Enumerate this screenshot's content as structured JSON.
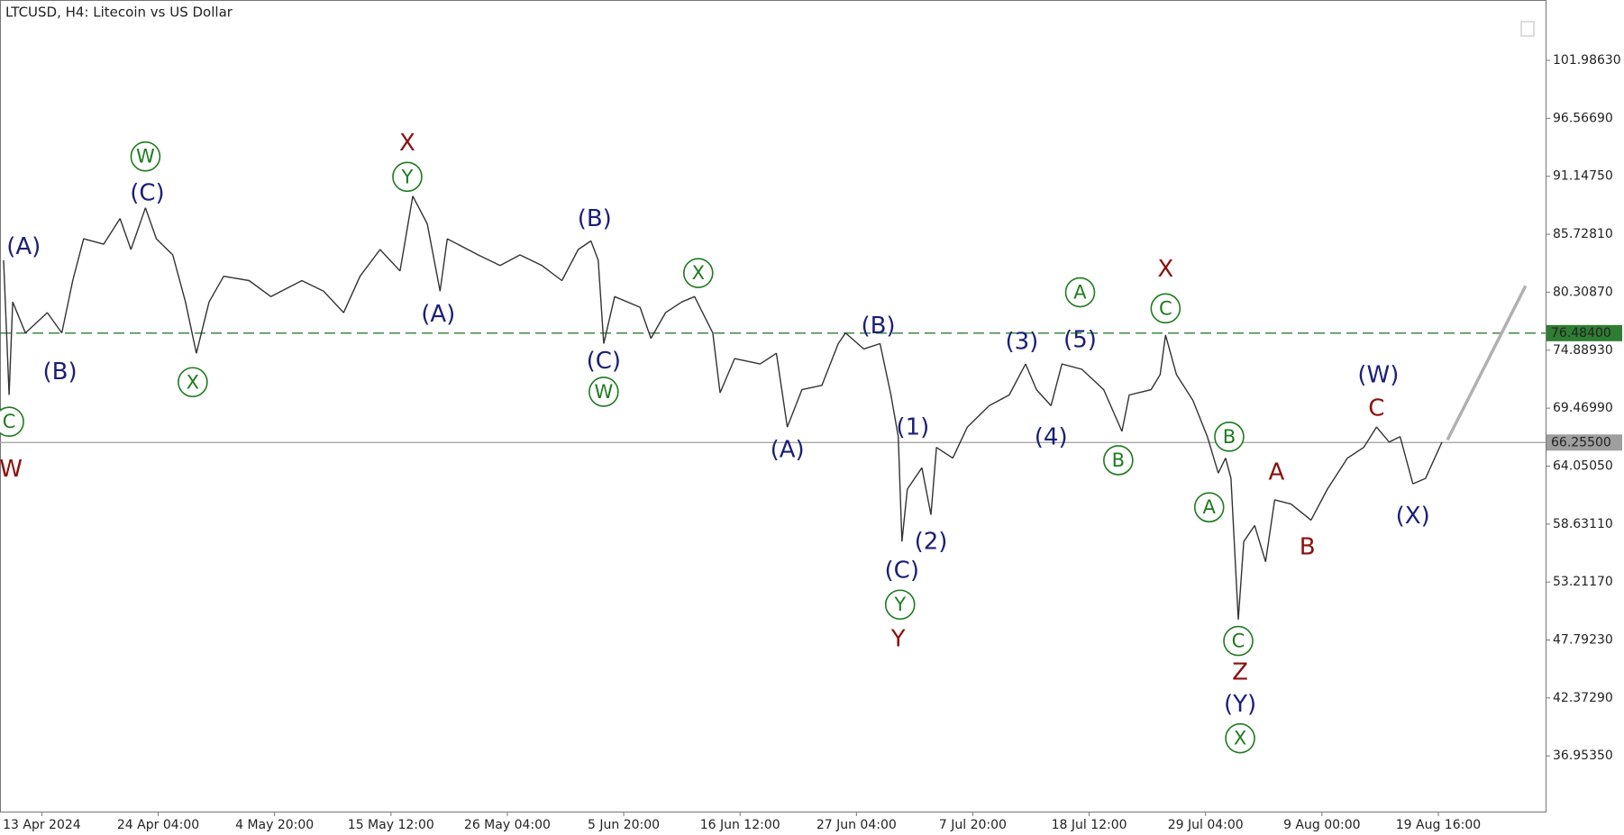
{
  "chart_data": {
    "type": "line",
    "title": "LTCUSD, H4:  Litecoin vs US Dollar",
    "color": "#333333",
    "x": [
      -21,
      -18,
      -16,
      -9,
      3,
      11,
      17,
      23,
      34,
      43,
      49,
      57,
      63,
      72,
      79,
      85,
      92,
      100,
      114,
      126,
      143,
      155,
      166,
      175,
      186,
      197,
      204,
      212,
      219,
      223,
      240,
      252,
      263,
      275,
      286,
      295,
      302,
      306,
      309,
      315,
      329,
      335,
      343,
      352,
      359,
      369,
      373,
      381,
      395,
      404,
      410,
      418,
      429,
      438,
      442,
      452,
      461,
      467,
      471,
      473,
      476,
      484,
      489,
      492,
      501,
      509,
      521,
      532,
      541,
      547,
      555,
      561,
      572,
      584,
      594,
      598,
      610,
      615,
      618,
      624,
      633,
      641,
      647,
      651,
      654,
      658,
      661,
      667,
      673,
      678,
      687,
      698,
      707,
      718,
      727,
      734,
      741,
      747,
      754,
      761,
      770
    ],
    "values": [
      83.3,
      70.7,
      79.4,
      76.5,
      78.4,
      76.5,
      81.4,
      85.3,
      84.8,
      87.2,
      84.3,
      88.2,
      85.3,
      83.8,
      79.4,
      74.6,
      79.4,
      81.8,
      81.4,
      79.9,
      81.4,
      80.4,
      78.4,
      81.8,
      84.3,
      82.3,
      89.3,
      86.7,
      80.4,
      85.3,
      83.8,
      82.8,
      83.8,
      82.8,
      81.4,
      84.3,
      85.1,
      83.3,
      75.5,
      79.9,
      78.9,
      76.0,
      78.4,
      79.4,
      79.9,
      76.5,
      70.9,
      74.1,
      73.6,
      74.6,
      67.7,
      71.2,
      71.6,
      75.5,
      76.5,
      75.0,
      75.5,
      70.7,
      66.8,
      57.0,
      61.9,
      63.9,
      59.5,
      65.8,
      64.8,
      67.7,
      69.7,
      70.7,
      73.6,
      71.2,
      69.7,
      73.6,
      73.1,
      71.2,
      67.3,
      70.7,
      71.2,
      72.6,
      76.3,
      72.6,
      70.2,
      66.8,
      63.4,
      64.8,
      62.9,
      49.7,
      57.0,
      58.5,
      55.1,
      60.9,
      60.5,
      59.0,
      61.9,
      64.8,
      65.8,
      67.7,
      66.3,
      66.8,
      62.4,
      62.9,
      66.3
    ],
    "xlim": [
      -23,
      827
    ],
    "ylim": [
      31.75,
      107.63
    ],
    "xticks": [
      {
        "value": 0,
        "label": "13 Apr 2024"
      },
      {
        "value": 64,
        "label": "24 Apr 04:00"
      },
      {
        "value": 128,
        "label": "4 May 20:00"
      },
      {
        "value": 192,
        "label": "15 May 12:00"
      },
      {
        "value": 256,
        "label": "26 May 04:00"
      },
      {
        "value": 320,
        "label": "5 Jun 20:00"
      },
      {
        "value": 384,
        "label": "16 Jun 12:00"
      },
      {
        "value": 448,
        "label": "27 Jun 04:00"
      },
      {
        "value": 512,
        "label": "7 Jul 20:00"
      },
      {
        "value": 576,
        "label": "18 Jul 12:00"
      },
      {
        "value": 640,
        "label": "29 Jul 04:00"
      },
      {
        "value": 704,
        "label": "9 Aug 00:00"
      },
      {
        "value": 768,
        "label": "19 Aug 16:00"
      }
    ],
    "yticks": [
      {
        "value": 101.9863,
        "label": "101.98630"
      },
      {
        "value": 96.5669,
        "label": "96.56690"
      },
      {
        "value": 91.1475,
        "label": "91.14750"
      },
      {
        "value": 85.7281,
        "label": "85.72810"
      },
      {
        "value": 80.3087,
        "label": "80.30870"
      },
      {
        "value": 74.8893,
        "label": "74.88930"
      },
      {
        "value": 69.4699,
        "label": "69.46990"
      },
      {
        "value": 64.0505,
        "label": "64.05050"
      },
      {
        "value": 58.6311,
        "label": "58.63110"
      },
      {
        "value": 53.2117,
        "label": "53.21170"
      },
      {
        "value": 47.7923,
        "label": "47.79230"
      },
      {
        "value": 42.3729,
        "label": "42.37290"
      },
      {
        "value": 36.9535,
        "label": "36.95350"
      }
    ],
    "levels": [
      {
        "value": 76.484,
        "label": "76.48400",
        "color": "#2e7d32",
        "dashed": true
      },
      {
        "value": 66.255,
        "label": "66.25500",
        "color": "#9e9e9e",
        "dashed": false
      }
    ],
    "forecast": {
      "x": [
        773,
        816
      ],
      "values": [
        66.5,
        80.9
      ],
      "color": "#b0b0b0"
    },
    "annotations": [
      {
        "text": "(A)",
        "x": -10,
        "y": 84.6,
        "color": "#1a1f77",
        "circled": false
      },
      {
        "text": "(B)",
        "x": 10,
        "y": 72.9,
        "color": "#1a1f77",
        "circled": false
      },
      {
        "text": "C",
        "x": -18,
        "y": 68.2,
        "color": "#1e7b1e",
        "circled": true
      },
      {
        "text": "W",
        "x": -17,
        "y": 63.8,
        "color": "#8b0f0f",
        "circled": false
      },
      {
        "text": "W",
        "x": 57,
        "y": 93.0,
        "color": "#1e7b1e",
        "circled": true
      },
      {
        "text": "(C)",
        "x": 58,
        "y": 89.6,
        "color": "#1a1f77",
        "circled": false
      },
      {
        "text": "X",
        "x": 83,
        "y": 71.9,
        "color": "#1e7b1e",
        "circled": true
      },
      {
        "text": "X",
        "x": 201,
        "y": 94.3,
        "color": "#8b0f0f",
        "circled": false
      },
      {
        "text": "Y",
        "x": 201,
        "y": 91.1,
        "color": "#1e7b1e",
        "circled": true
      },
      {
        "text": "(A)",
        "x": 218,
        "y": 78.3,
        "color": "#1a1f77",
        "circled": false
      },
      {
        "text": "(B)",
        "x": 304,
        "y": 87.2,
        "color": "#1a1f77",
        "circled": false
      },
      {
        "text": "(C)",
        "x": 309,
        "y": 73.9,
        "color": "#1a1f77",
        "circled": false
      },
      {
        "text": "W",
        "x": 309,
        "y": 71.0,
        "color": "#1e7b1e",
        "circled": true
      },
      {
        "text": "X",
        "x": 361,
        "y": 82.1,
        "color": "#1e7b1e",
        "circled": true
      },
      {
        "text": "(A)",
        "x": 410,
        "y": 65.6,
        "color": "#1a1f77",
        "circled": false
      },
      {
        "text": "(B)",
        "x": 460,
        "y": 77.2,
        "color": "#1a1f77",
        "circled": false
      },
      {
        "text": "(1)",
        "x": 479,
        "y": 67.7,
        "color": "#1a1f77",
        "circled": false
      },
      {
        "text": "(2)",
        "x": 489,
        "y": 57.0,
        "color": "#1a1f77",
        "circled": false
      },
      {
        "text": "(C)",
        "x": 473,
        "y": 54.3,
        "color": "#1a1f77",
        "circled": false
      },
      {
        "text": "Y",
        "x": 472,
        "y": 51.1,
        "color": "#1e7b1e",
        "circled": true
      },
      {
        "text": "Y",
        "x": 471,
        "y": 47.9,
        "color": "#8b0f0f",
        "circled": false
      },
      {
        "text": "(3)",
        "x": 539,
        "y": 75.7,
        "color": "#1a1f77",
        "circled": false
      },
      {
        "text": "(4)",
        "x": 555,
        "y": 66.8,
        "color": "#1a1f77",
        "circled": false
      },
      {
        "text": "(5)",
        "x": 571,
        "y": 75.9,
        "color": "#1a1f77",
        "circled": false
      },
      {
        "text": "A",
        "x": 571,
        "y": 80.3,
        "color": "#1e7b1e",
        "circled": true
      },
      {
        "text": "B",
        "x": 592,
        "y": 64.6,
        "color": "#1e7b1e",
        "circled": true
      },
      {
        "text": "X",
        "x": 618,
        "y": 82.5,
        "color": "#8b0f0f",
        "circled": false
      },
      {
        "text": "C",
        "x": 618,
        "y": 78.8,
        "color": "#1e7b1e",
        "circled": true
      },
      {
        "text": "B",
        "x": 653,
        "y": 66.8,
        "color": "#1e7b1e",
        "circled": true
      },
      {
        "text": "A",
        "x": 642,
        "y": 60.2,
        "color": "#1e7b1e",
        "circled": true
      },
      {
        "text": "C",
        "x": 658,
        "y": 47.7,
        "color": "#1e7b1e",
        "circled": true
      },
      {
        "text": "Z",
        "x": 659,
        "y": 44.8,
        "color": "#8b0f0f",
        "circled": false
      },
      {
        "text": "(Y)",
        "x": 659,
        "y": 41.8,
        "color": "#1a1f77",
        "circled": false
      },
      {
        "text": "X",
        "x": 659,
        "y": 38.6,
        "color": "#1e7b1e",
        "circled": true
      },
      {
        "text": "A",
        "x": 679,
        "y": 63.5,
        "color": "#8b0f0f",
        "circled": false
      },
      {
        "text": "B",
        "x": 696,
        "y": 56.5,
        "color": "#8b0f0f",
        "circled": false
      },
      {
        "text": "C",
        "x": 734,
        "y": 69.5,
        "color": "#8b0f0f",
        "circled": false
      },
      {
        "text": "(W)",
        "x": 735,
        "y": 72.6,
        "color": "#1a1f77",
        "circled": false
      },
      {
        "text": "(X)",
        "x": 754,
        "y": 59.4,
        "color": "#1a1f77",
        "circled": false
      }
    ]
  }
}
